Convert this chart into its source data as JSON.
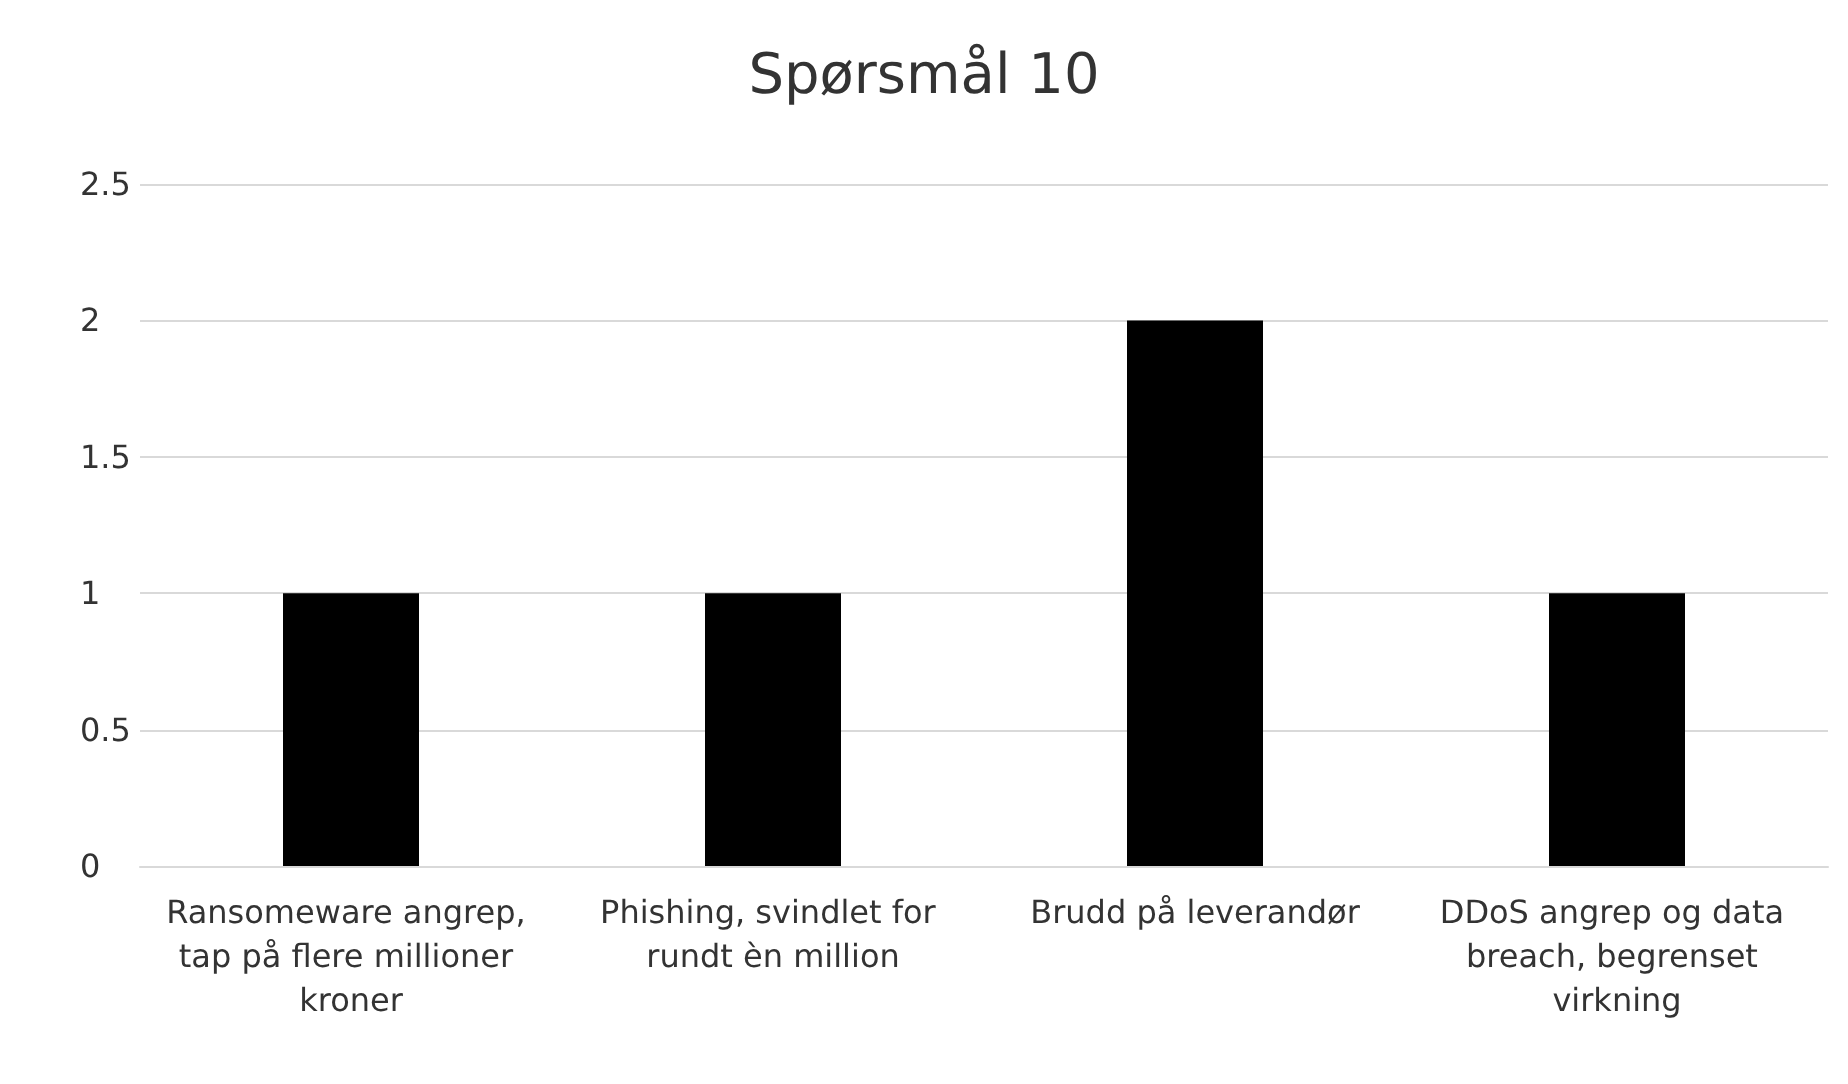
{
  "chart_data": {
    "type": "bar",
    "title": "Spørsmål 10",
    "categories": [
      "Ransomeware angrep, tap på flere millioner kroner",
      "Phishing, svindlet for rundt èn million",
      "Brudd på leverandør",
      "DDoS angrep og data breach, begrenset virkning"
    ],
    "values": [
      1,
      1,
      2,
      1
    ],
    "color": "#000000",
    "ylim": [
      0,
      2.5
    ],
    "yticks": [
      0,
      0.5,
      1,
      1.5,
      2,
      2.5
    ],
    "grid": "y"
  }
}
